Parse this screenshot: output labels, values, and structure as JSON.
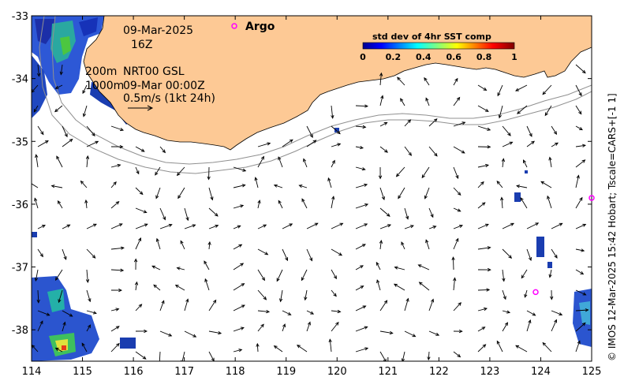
{
  "map": {
    "lon_range": [
      114,
      125
    ],
    "lat_range": [
      -38.5,
      -33
    ],
    "x_ticks": [
      "114",
      "115",
      "116",
      "117",
      "118",
      "119",
      "120",
      "121",
      "122",
      "123",
      "124",
      "125"
    ],
    "y_ticks": [
      "-33",
      "-34",
      "-35",
      "-36",
      "-37",
      "-38"
    ],
    "land_color": "#fdc995",
    "ocean_color": "#ffffff"
  },
  "annotations": {
    "date": "09-Mar-2025",
    "time": "16Z",
    "depth_200": "200m",
    "depth_1000": "1000m",
    "product": "NRT00 GSL",
    "product_date": "09-Mar 00:00Z",
    "scale_label": "0.5m/s (1kt 24h)"
  },
  "argo": {
    "label": "Argo",
    "color": "#ff00ff",
    "floats": [
      {
        "lon": 123.9,
        "lat": -37.4
      },
      {
        "lon": 125.0,
        "lat": -35.9
      }
    ]
  },
  "colorbar": {
    "title": "std dev of 4hr SST comp",
    "ticks": [
      "0",
      "0.2",
      "0.4",
      "0.6",
      "0.8",
      "1"
    ]
  },
  "credit": "© IMOS 12-Mar-2025 15:42 Hobart; Tscale=CARS+[-1 1]"
}
